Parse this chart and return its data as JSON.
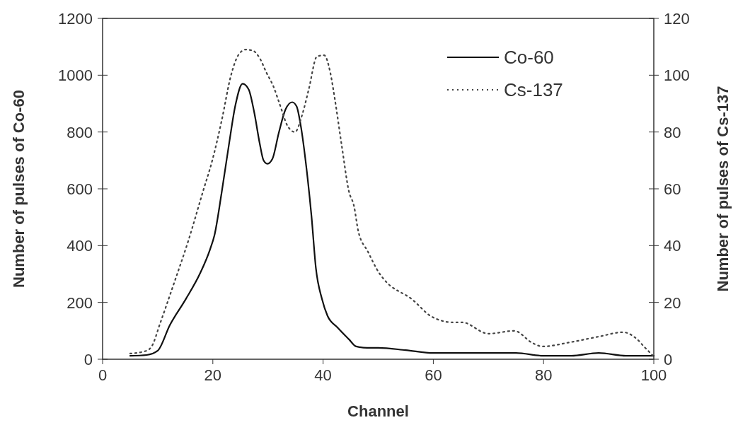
{
  "chart_data": {
    "type": "line",
    "xlabel": "Channel",
    "ylabel": "Number of pulses of Co-60",
    "y2label": "Number of pulses of Cs-137",
    "xlim": [
      0,
      100
    ],
    "xticks": [
      0,
      20,
      40,
      60,
      80,
      100
    ],
    "ylim": [
      0,
      1200
    ],
    "yticks": [
      0,
      200,
      400,
      600,
      800,
      1000,
      1200
    ],
    "y2lim": [
      0,
      120
    ],
    "y2ticks": [
      0,
      20,
      40,
      60,
      80,
      100,
      120
    ],
    "legend": "top right",
    "grid": false,
    "series": [
      {
        "name": "Co-60",
        "color": "#111111",
        "line_style": "solid",
        "x": [
          5,
          8,
          10,
          12.2,
          15.1,
          17.7,
          19.5,
          20.3,
          21.6,
          22.9,
          24.1,
          25.4,
          26.5,
          27.5,
          28.5,
          29.2,
          29.9,
          30.8,
          32,
          33.2,
          34.4,
          35.2,
          35.9,
          37,
          37.9,
          38.7,
          39.8,
          40.8,
          42.6,
          44.7,
          46,
          48,
          50,
          55,
          60,
          75,
          80,
          85,
          90,
          95,
          100
        ],
        "values": [
          12,
          15,
          30,
          120,
          212,
          303,
          387,
          437,
          587,
          753,
          895,
          970,
          950,
          870,
          760,
          700,
          688,
          705,
          800,
          880,
          905,
          890,
          828,
          670,
          503,
          320,
          212,
          153,
          112,
          70,
          45,
          40,
          40,
          32,
          22,
          22,
          12,
          12,
          22,
          12,
          12
        ]
      },
      {
        "name": "Cs-137",
        "color": "#444444",
        "line_style": "dotted",
        "axis": "y2",
        "x": [
          5,
          8,
          8.9,
          10.5,
          13,
          15.6,
          18.2,
          19.9,
          21.6,
          23.3,
          24.6,
          25.9,
          27.2,
          28.5,
          29.7,
          31,
          32.1,
          33.6,
          34.9,
          36.2,
          37.4,
          38.9,
          40.2,
          41.3,
          42.1,
          43.4,
          44.7,
          45.6,
          46.4,
          48.1,
          50.3,
          51.1,
          56.2,
          59.7,
          63.5,
          65.2,
          70,
          74.7,
          78,
          79.8,
          84.9,
          90.1,
          94.4,
          97,
          98.2,
          100
        ],
        "values": [
          2,
          3,
          4.5,
          13,
          27,
          42,
          59,
          70,
          84,
          100,
          107,
          109,
          108.7,
          106,
          101,
          96,
          90,
          82,
          80,
          86,
          95,
          106.6,
          107,
          101,
          92,
          75,
          59,
          54,
          45,
          38,
          30,
          28,
          21,
          15,
          13,
          13,
          9,
          10,
          5.7,
          4.5,
          6,
          8,
          9.5,
          7,
          4.5,
          1
        ]
      }
    ]
  }
}
